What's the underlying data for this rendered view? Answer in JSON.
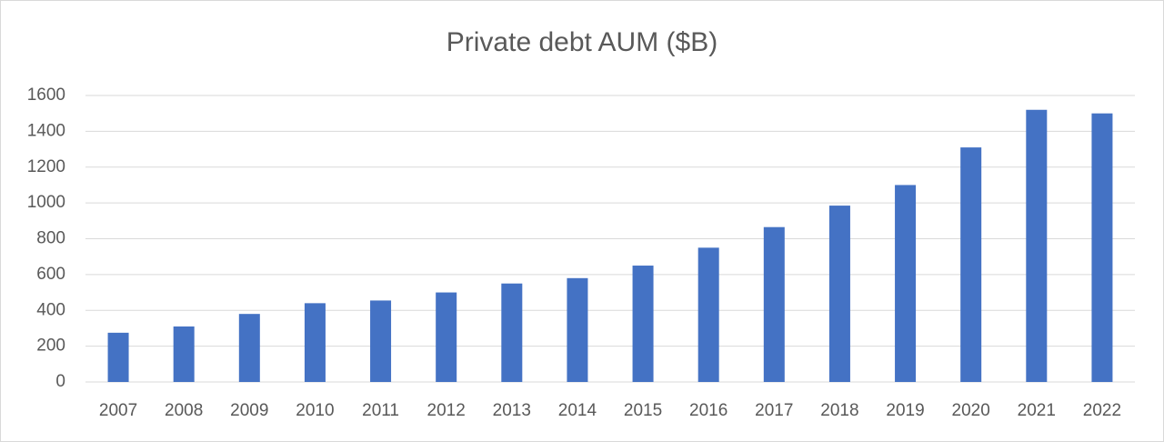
{
  "chart_data": {
    "type": "bar",
    "title": "Private debt AUM ($B)",
    "categories": [
      "2007",
      "2008",
      "2009",
      "2010",
      "2011",
      "2012",
      "2013",
      "2014",
      "2015",
      "2016",
      "2017",
      "2018",
      "2019",
      "2020",
      "2021",
      "2022"
    ],
    "values": [
      275,
      310,
      380,
      440,
      455,
      500,
      550,
      580,
      650,
      750,
      865,
      985,
      1100,
      1310,
      1520,
      1500
    ],
    "color": "#4472c4",
    "ylim": [
      0,
      1600
    ],
    "yticks": [
      0,
      200,
      400,
      600,
      800,
      1000,
      1200,
      1400,
      1600
    ],
    "grid": true
  }
}
